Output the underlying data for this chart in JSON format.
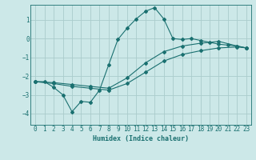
{
  "title": "",
  "xlabel": "Humidex (Indice chaleur)",
  "bg_color": "#cce8e8",
  "grid_color": "#aacccc",
  "line_color": "#1a7070",
  "xlim": [
    -0.5,
    23.5
  ],
  "ylim": [
    -4.6,
    1.8
  ],
  "yticks": [
    -4,
    -3,
    -2,
    -1,
    0,
    1
  ],
  "xticks": [
    0,
    1,
    2,
    3,
    4,
    5,
    6,
    7,
    8,
    9,
    10,
    11,
    12,
    13,
    14,
    15,
    16,
    17,
    18,
    19,
    20,
    21,
    22,
    23
  ],
  "line1_x": [
    0,
    1,
    2,
    3,
    4,
    5,
    6,
    7,
    8,
    9,
    10,
    11,
    12,
    13,
    14,
    15,
    16,
    17,
    18,
    19,
    20,
    21,
    22,
    23
  ],
  "line1_y": [
    -2.3,
    -2.3,
    -2.6,
    -3.0,
    -3.9,
    -3.35,
    -3.4,
    -2.75,
    -1.4,
    -0.05,
    0.55,
    1.05,
    1.45,
    1.65,
    1.05,
    0.0,
    -0.05,
    0.0,
    -0.1,
    -0.2,
    -0.3,
    -0.35,
    -0.4,
    -0.5
  ],
  "line2_x": [
    0,
    2,
    4,
    6,
    8,
    10,
    12,
    14,
    16,
    18,
    20,
    22,
    23
  ],
  "line2_y": [
    -2.3,
    -2.35,
    -2.45,
    -2.55,
    -2.65,
    -2.1,
    -1.3,
    -0.7,
    -0.4,
    -0.25,
    -0.15,
    -0.4,
    -0.5
  ],
  "line3_x": [
    0,
    2,
    4,
    6,
    8,
    10,
    12,
    14,
    16,
    18,
    20,
    22,
    23
  ],
  "line3_y": [
    -2.3,
    -2.4,
    -2.55,
    -2.65,
    -2.75,
    -2.4,
    -1.8,
    -1.2,
    -0.85,
    -0.65,
    -0.5,
    -0.45,
    -0.5
  ]
}
